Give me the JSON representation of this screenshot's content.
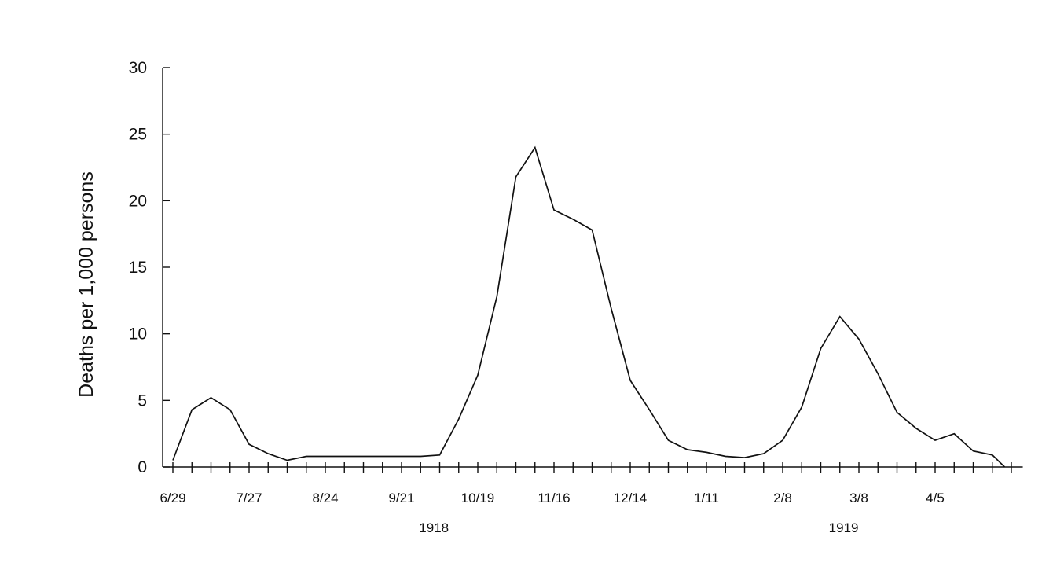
{
  "chart_data": {
    "type": "line",
    "title": "",
    "xlabel": "",
    "ylabel": "Deaths per 1,000 persons",
    "ylim": [
      0,
      30
    ],
    "yticks": [
      "0",
      "5",
      "10",
      "15",
      "20",
      "25",
      "30"
    ],
    "xtick_labels": [
      {
        "label": "6/29",
        "week": 0
      },
      {
        "label": "7/27",
        "week": 4
      },
      {
        "label": "8/24",
        "week": 8
      },
      {
        "label": "9/21",
        "week": 12
      },
      {
        "label": "10/19",
        "week": 16
      },
      {
        "label": "11/16",
        "week": 20
      },
      {
        "label": "12/14",
        "week": 24
      },
      {
        "label": "1/11",
        "week": 28
      },
      {
        "label": "2/8",
        "week": 32
      },
      {
        "label": "3/8",
        "week": 36
      },
      {
        "label": "4/5",
        "week": 40
      }
    ],
    "year_labels": [
      {
        "label": "1918",
        "week": 13.7
      },
      {
        "label": "1919",
        "week": 35.2
      }
    ],
    "grid": false,
    "legend": "none",
    "line_color": "#111111",
    "series": [
      {
        "name": "",
        "x": [
          0,
          1,
          2,
          3,
          4,
          5,
          6,
          7,
          8,
          9,
          10,
          11,
          12,
          13,
          14,
          15,
          16,
          17,
          18,
          19,
          20,
          21,
          22,
          23,
          24,
          25,
          26,
          27,
          28,
          29,
          30,
          31,
          32,
          33,
          34,
          35,
          36,
          37,
          38,
          39,
          40,
          41,
          42,
          43,
          44
        ],
        "y": [
          0.5,
          4.3,
          5.2,
          4.3,
          1.7,
          1.0,
          0.5,
          0.8,
          0.8,
          0.8,
          0.8,
          0.8,
          0.8,
          0.8,
          0.9,
          3.6,
          6.9,
          12.8,
          21.8,
          24.0,
          19.3,
          18.6,
          17.8,
          11.9,
          6.5,
          4.3,
          2.0,
          1.3,
          1.1,
          0.8,
          0.7,
          1.0,
          2.0,
          4.5,
          8.9,
          11.3,
          9.6,
          7.0,
          4.1,
          2.9,
          2.0,
          2.5,
          1.2,
          0.9,
          0.0
        ]
      }
    ]
  }
}
